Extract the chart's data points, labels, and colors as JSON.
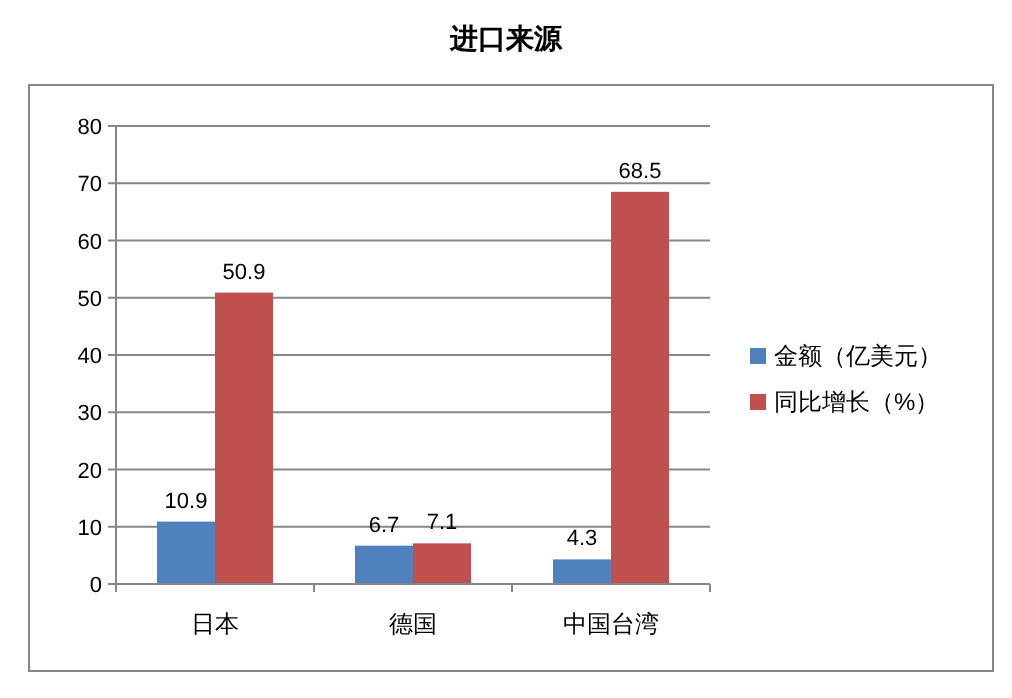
{
  "chart_data": {
    "type": "bar",
    "title": "进口来源",
    "categories": [
      "日本",
      "德国",
      "中国台湾"
    ],
    "series": [
      {
        "name": "金额（亿美元）",
        "color": "#4f81bd",
        "values": [
          10.9,
          6.7,
          4.3
        ]
      },
      {
        "name": "同比增长（%）",
        "color": "#c0504d",
        "values": [
          50.9,
          7.1,
          68.5
        ]
      }
    ],
    "ylim": [
      0,
      80
    ],
    "yticks": [
      0,
      10,
      20,
      30,
      40,
      50,
      60,
      70,
      80
    ],
    "grid": "y",
    "legend": "right",
    "data_labels": true
  }
}
